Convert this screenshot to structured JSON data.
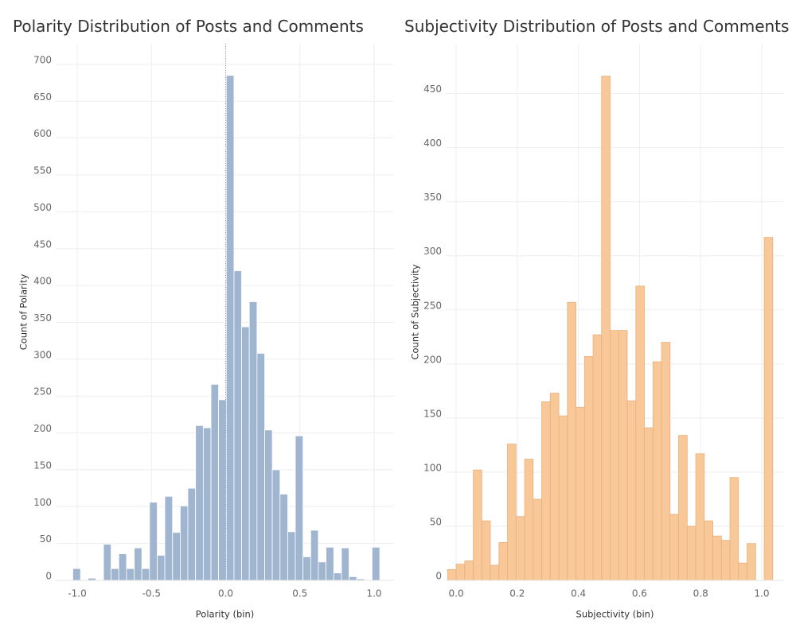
{
  "chart_data": [
    {
      "type": "histogram",
      "title": "Polarity Distribution of Posts and Comments",
      "x_label": "Polarity (bin)",
      "y_label": "Count of Polarity",
      "bins": [
        -1.03,
        -0.978,
        -0.927,
        -0.875,
        -0.823,
        -0.772,
        -0.72,
        -0.668,
        -0.616,
        -0.565,
        -0.513,
        -0.461,
        -0.41,
        -0.358,
        -0.306,
        -0.255,
        -0.203,
        -0.151,
        -0.099,
        -0.048,
        0.004,
        0.056,
        0.107,
        0.159,
        0.211,
        0.263,
        0.314,
        0.366,
        0.418,
        0.469,
        0.521,
        0.573,
        0.624,
        0.676,
        0.728,
        0.78,
        0.831,
        0.883,
        0.935,
        0.986,
        1.038
      ],
      "values": [
        16,
        0,
        3,
        1,
        49,
        16,
        36,
        16,
        44,
        16,
        106,
        34,
        114,
        65,
        101,
        125,
        210,
        207,
        266,
        245,
        685,
        420,
        344,
        378,
        308,
        204,
        150,
        117,
        66,
        196,
        32,
        68,
        25,
        45,
        10,
        44,
        5,
        2,
        0,
        45
      ],
      "color": "#a0b5d0",
      "stroke": "#ffffff",
      "reference_x": 0,
      "xlim": [
        -1.145,
        1.134
      ],
      "ylim": [
        0,
        728
      ],
      "xticks": [
        {
          "value": -1,
          "label": "-1.0"
        },
        -0.5,
        {
          "value": 0,
          "label": "0.0"
        },
        0.5,
        {
          "value": 1,
          "label": "1.0"
        }
      ],
      "yticks": [
        0,
        50,
        100,
        150,
        200,
        250,
        300,
        350,
        400,
        450,
        500,
        550,
        600,
        650,
        700
      ],
      "grid": true
    },
    {
      "type": "histogram",
      "title": "Subjectivity Distribution of Posts and Comments",
      "x_label": "Subjectivity (bin)",
      "y_label": "Count of Subjectivity",
      "bins": [
        -0.028,
        0,
        0.028,
        0.056,
        0.084,
        0.112,
        0.14,
        0.168,
        0.196,
        0.224,
        0.252,
        0.28,
        0.308,
        0.336,
        0.364,
        0.392,
        0.42,
        0.448,
        0.476,
        0.504,
        0.532,
        0.56,
        0.588,
        0.616,
        0.644,
        0.672,
        0.7,
        0.728,
        0.756,
        0.784,
        0.812,
        0.84,
        0.868,
        0.896,
        0.924,
        0.952,
        0.98,
        1.008,
        1.036
      ],
      "values": [
        10,
        15,
        18,
        102,
        55,
        14,
        35,
        126,
        59,
        112,
        75,
        165,
        173,
        152,
        257,
        160,
        207,
        227,
        466,
        231,
        231,
        166,
        272,
        141,
        202,
        220,
        61,
        134,
        50,
        117,
        55,
        41,
        37,
        95,
        16,
        34,
        0,
        317
      ],
      "color": "#f8c898",
      "stroke": "#e8b07c",
      "xlim": [
        -0.034,
        1.073
      ],
      "ylim": [
        0,
        496
      ],
      "xticks": [
        {
          "value": 0,
          "label": "0.0"
        },
        0.2,
        0.4,
        0.6,
        0.8,
        {
          "value": 1,
          "label": "1.0"
        }
      ],
      "yticks": [
        0,
        50,
        100,
        150,
        200,
        250,
        300,
        350,
        400,
        450
      ],
      "grid": true
    }
  ]
}
